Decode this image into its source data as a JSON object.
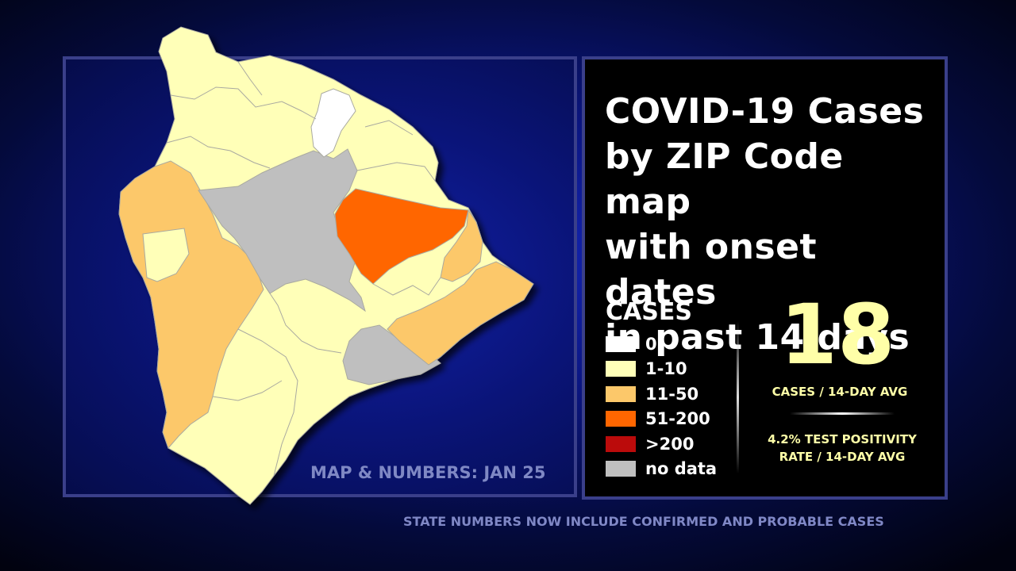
{
  "title": "COVID-19 Cases\nby ZIP Code map\nwith onset dates\nin past 14 days",
  "legend": {
    "heading": "CASES",
    "items": [
      {
        "label": "0",
        "color": "#ffffff"
      },
      {
        "label": "1-10",
        "color": "#ffffb8"
      },
      {
        "label": "11-50",
        "color": "#fcc86a"
      },
      {
        "label": "51-200",
        "color": "#ff6600"
      },
      {
        "label": ">200",
        "color": "#bb0b0b"
      },
      {
        "label": "no data",
        "color": "#bfbfbf"
      }
    ]
  },
  "stats": {
    "cases_value": "18",
    "cases_caption": "CASES / 14-DAY AVG",
    "positivity_text": "4.2% TEST POSITIVITY\nRATE / 14-DAY AVG"
  },
  "map_date": "MAP & NUMBERS: JAN 25",
  "footer_note": "STATE NUMBERS NOW INCLUDE CONFIRMED AND PROBABLE CASES"
}
